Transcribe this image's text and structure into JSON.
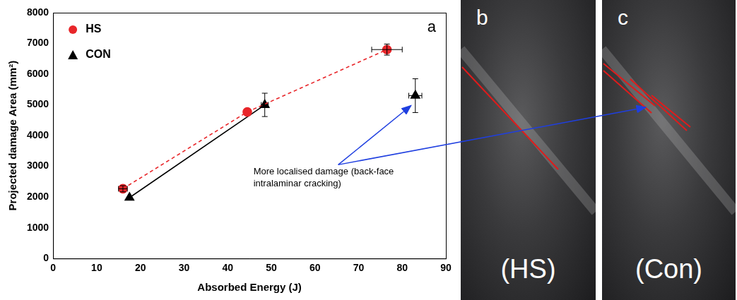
{
  "chart_data": {
    "type": "scatter",
    "x_label": "Absorbed Energy (J)",
    "y_label": "Projected damage Area (mm²)",
    "panel_label": "a",
    "annotation": "More localised damage (back-face intralaminar cracking)",
    "xlim": [
      0,
      90
    ],
    "xticks": [
      0,
      10,
      20,
      30,
      40,
      50,
      60,
      70,
      80,
      90
    ],
    "ylim": [
      0,
      8000
    ],
    "yticks": [
      0,
      1000,
      2000,
      3000,
      4000,
      5000,
      6000,
      7000,
      8000
    ],
    "grid": false,
    "legend": "upper left",
    "series": [
      {
        "name": "HS",
        "color": "#e8262a",
        "marker": "circle",
        "line_style": "dashed",
        "x": [
          16,
          44.5,
          76.5
        ],
        "values": [
          2270,
          4770,
          6800
        ],
        "x_error": [
          1,
          null,
          3.5
        ],
        "y_error": [
          100,
          null,
          180
        ]
      },
      {
        "name": "CON",
        "color": "#000000",
        "marker": "triangle",
        "line_style": "solid",
        "x": [
          17.5,
          48.5,
          null,
          83
        ],
        "values": [
          1980,
          5000,
          null,
          5300
        ],
        "x_error": [
          null,
          0.8,
          null,
          1.5
        ],
        "y_error": [
          null,
          380,
          null,
          550
        ]
      }
    ]
  },
  "photos": [
    {
      "letter": "b",
      "label": "(HS)"
    },
    {
      "letter": "c",
      "label": "(Con)"
    }
  ]
}
